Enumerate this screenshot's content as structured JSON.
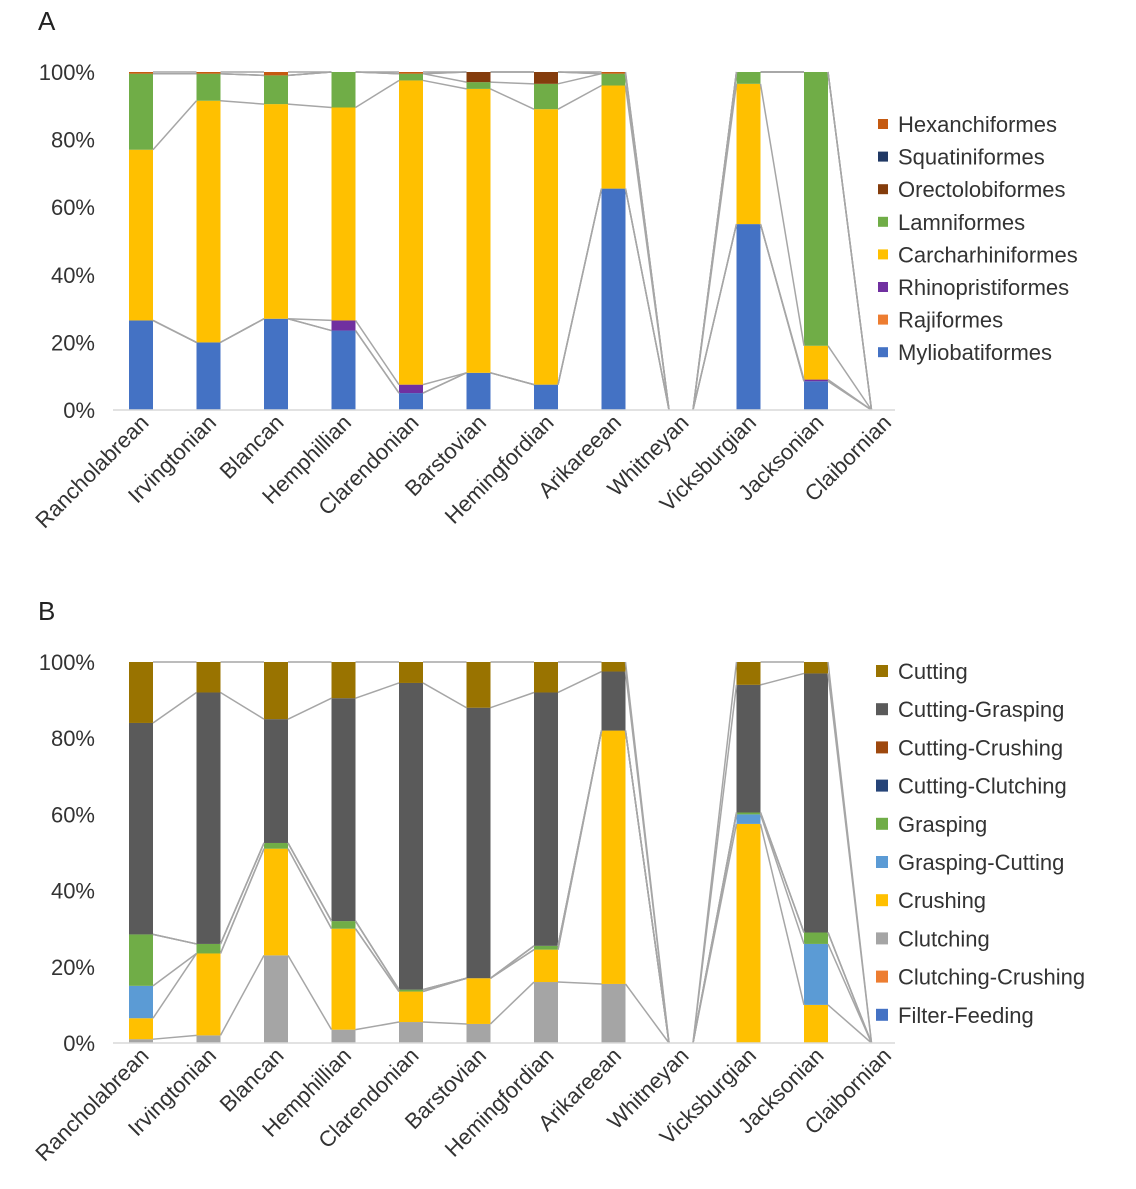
{
  "chart_data": [
    {
      "type": "bar",
      "stacked": true,
      "normalized": true,
      "title": "",
      "panel_label": "A",
      "xlabel": "",
      "ylabel": "",
      "ylim": [
        0,
        100
      ],
      "yticks": [
        "0%",
        "20%",
        "40%",
        "60%",
        "80%",
        "100%"
      ],
      "grid": false,
      "legend_position": "right",
      "connector_lines": true,
      "categories": [
        "Rancholabrean",
        "Irvingtonian",
        "Blancan",
        "Hemphillian",
        "Clarendonian",
        "Barstovian",
        "Hemingfordian",
        "Arikareean",
        "Whitneyan",
        "Vicksburgian",
        "Jacksonian",
        "Claibornian"
      ],
      "series": [
        {
          "name": "Myliobatiformes",
          "color": "#4472c4",
          "values": [
            26.5,
            20,
            27,
            23.5,
            5,
            11,
            7.5,
            65.5,
            0,
            55,
            8.5,
            0
          ]
        },
        {
          "name": "Rajiformes",
          "color": "#ed7d31",
          "values": [
            0,
            0,
            0,
            0,
            0,
            0,
            0,
            0,
            0,
            0,
            0,
            0
          ]
        },
        {
          "name": "Rhinopristiformes",
          "color": "#7030a0",
          "values": [
            0,
            0,
            0,
            3,
            2.5,
            0,
            0,
            0,
            0,
            0,
            0.5,
            0
          ]
        },
        {
          "name": "Carcharhiniformes",
          "color": "#ffc000",
          "values": [
            50.5,
            71.5,
            63.5,
            63,
            90,
            84,
            81.5,
            30.5,
            0,
            41.5,
            10,
            0
          ]
        },
        {
          "name": "Lamniformes",
          "color": "#70ad47",
          "values": [
            22.5,
            8,
            8.5,
            10.5,
            2,
            2,
            7.5,
            3.5,
            0,
            3.5,
            81,
            0
          ]
        },
        {
          "name": "Orectolobiformes",
          "color": "#843c0c",
          "values": [
            0,
            0,
            0,
            0,
            0,
            3,
            3.5,
            0,
            0,
            0,
            0,
            0
          ]
        },
        {
          "name": "Squatiniformes",
          "color": "#203864",
          "values": [
            0,
            0,
            0,
            0,
            0,
            0,
            0,
            0,
            0,
            0,
            0,
            0
          ]
        },
        {
          "name": "Hexanchiformes",
          "color": "#c55a11",
          "values": [
            0.5,
            0.5,
            1,
            0,
            0.5,
            0,
            0,
            0.5,
            0,
            0,
            0,
            0
          ]
        }
      ],
      "legend_order": [
        "Hexanchiformes",
        "Squatiniformes",
        "Orectolobiformes",
        "Lamniformes",
        "Carcharhiniformes",
        "Rhinopristiformes",
        "Rajiformes",
        "Myliobatiformes"
      ]
    },
    {
      "type": "bar",
      "stacked": true,
      "normalized": true,
      "title": "",
      "panel_label": "B",
      "xlabel": "",
      "ylabel": "",
      "ylim": [
        0,
        100
      ],
      "yticks": [
        "0%",
        "20%",
        "40%",
        "60%",
        "80%",
        "100%"
      ],
      "grid": false,
      "legend_position": "right",
      "connector_lines": true,
      "categories": [
        "Rancholabrean",
        "Irvingtonian",
        "Blancan",
        "Hemphillian",
        "Clarendonian",
        "Barstovian",
        "Hemingfordian",
        "Arikareean",
        "Whitneyan",
        "Vicksburgian",
        "Jacksonian",
        "Claibornian"
      ],
      "series": [
        {
          "name": "Filter-Feeding",
          "color": "#4472c4",
          "values": [
            0,
            0,
            0,
            0,
            0,
            0,
            0,
            0,
            0,
            0,
            0,
            0
          ]
        },
        {
          "name": "Clutching-Crushing",
          "color": "#ed7d31",
          "values": [
            0,
            0,
            0,
            0,
            0,
            0,
            0,
            0,
            0,
            0,
            0,
            0
          ]
        },
        {
          "name": "Clutching",
          "color": "#a5a5a5",
          "values": [
            1,
            2,
            23,
            3.5,
            5.5,
            5,
            16,
            15.5,
            0,
            0,
            0,
            0
          ]
        },
        {
          "name": "Crushing",
          "color": "#ffc000",
          "values": [
            5.5,
            21.5,
            28,
            26.5,
            8,
            12,
            8.5,
            66.5,
            0,
            57.5,
            10,
            0
          ]
        },
        {
          "name": "Grasping-Cutting",
          "color": "#5b9bd5",
          "values": [
            8.5,
            0,
            0,
            0,
            0,
            0,
            0,
            0,
            0,
            2.5,
            16,
            0
          ]
        },
        {
          "name": "Grasping",
          "color": "#70ad47",
          "values": [
            13.5,
            2.5,
            1.5,
            2,
            0.5,
            0,
            1,
            0,
            0,
            0.5,
            3,
            0
          ]
        },
        {
          "name": "Cutting-Clutching",
          "color": "#264478",
          "values": [
            0,
            0,
            0,
            0,
            0,
            0,
            0,
            0,
            0,
            0,
            0,
            0
          ]
        },
        {
          "name": "Cutting-Crushing",
          "color": "#9e480e",
          "values": [
            0,
            0,
            0,
            0,
            0,
            0,
            0,
            0,
            0,
            0,
            0,
            0
          ]
        },
        {
          "name": "Cutting-Grasping",
          "color": "#5a5a5a",
          "values": [
            55.5,
            66,
            32.5,
            58.5,
            80.5,
            71,
            66.5,
            15.5,
            0,
            33.5,
            68,
            0
          ]
        },
        {
          "name": "Cutting",
          "color": "#997300",
          "values": [
            16,
            8,
            15,
            9.5,
            5.5,
            12,
            8,
            2.5,
            0,
            6,
            3,
            0
          ]
        }
      ],
      "legend_order": [
        "Cutting",
        "Cutting-Grasping",
        "Cutting-Crushing",
        "Cutting-Clutching",
        "Grasping",
        "Grasping-Cutting",
        "Crushing",
        "Clutching",
        "Clutching-Crushing",
        "Filter-Feeding"
      ]
    }
  ]
}
